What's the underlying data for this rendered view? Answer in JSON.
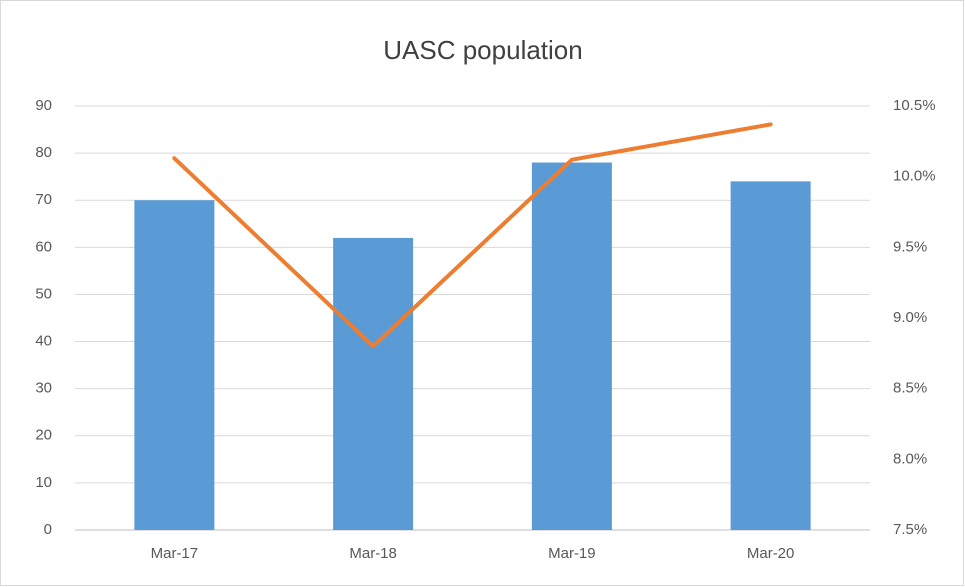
{
  "chart_data": {
    "type": "bar",
    "title": "UASC population",
    "categories": [
      "Mar-17",
      "Mar-18",
      "Mar-19",
      "Mar-20"
    ],
    "series": [
      {
        "type": "bar",
        "color": "#5b9bd5",
        "values": [
          70,
          62,
          78,
          74
        ]
      },
      {
        "type": "line",
        "color": "#ed7d31",
        "axis": "y2",
        "values": [
          10.13,
          8.8,
          10.12,
          10.37
        ]
      }
    ],
    "ylim": [
      0,
      90
    ],
    "yticks": [
      0,
      10,
      20,
      30,
      40,
      50,
      60,
      70,
      80,
      90
    ],
    "y2lim": [
      7.5,
      10.5
    ],
    "y2ticks": [
      {
        "value": 7.5,
        "label": "7.5%"
      },
      {
        "value": 8.0,
        "label": "8.0%"
      },
      {
        "value": 8.5,
        "label": "8.5%"
      },
      {
        "value": 9.0,
        "label": "9.0%"
      },
      {
        "value": 9.5,
        "label": "9.5%"
      },
      {
        "value": 10.0,
        "label": "10.0%"
      },
      {
        "value": 10.5,
        "label": "10.5%"
      }
    ],
    "grid": true
  }
}
